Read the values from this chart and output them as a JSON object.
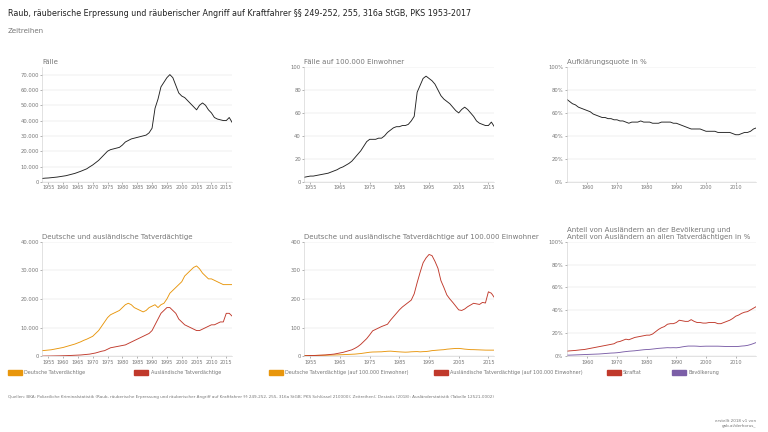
{
  "title": "Raub, räuberische Erpressung und räuberischer Angriff auf Kraftfahrer §§ 249-252, 255, 316a StGB, PKS 1953-2017",
  "subtitle": "Zeitreihen",
  "bg_color": "#ffffff",
  "text_color": "#777777",
  "line_color_black": "#222222",
  "line_color_orange": "#e8960c",
  "line_color_red": "#c0392b",
  "line_color_pink": "#c0392b",
  "line_color_purple": "#7b5ea7",
  "source_text": "Quellen: BKA: Polizeiliche Kriminalstatistik (Raub, räuberische Erpressung und räuberischer Angriff auf Kraftfahrer §§ 249-252, 255, 316a StGB; PKS Schlüssel 210000); Zeitreihen); Destatis (2018): Ausländerstatistik (Tabelle 12521-0002)",
  "credit_text": "erstellt 2018 v1 von\ngab.ai/derhorus_",
  "years_full": [
    1953,
    1954,
    1955,
    1956,
    1957,
    1958,
    1959,
    1960,
    1961,
    1962,
    1963,
    1964,
    1965,
    1966,
    1967,
    1968,
    1969,
    1970,
    1971,
    1972,
    1973,
    1974,
    1975,
    1976,
    1977,
    1978,
    1979,
    1980,
    1981,
    1982,
    1983,
    1984,
    1985,
    1986,
    1987,
    1988,
    1989,
    1990,
    1991,
    1992,
    1993,
    1994,
    1995,
    1996,
    1997,
    1998,
    1999,
    2000,
    2001,
    2002,
    2003,
    2004,
    2005,
    2006,
    2007,
    2008,
    2009,
    2010,
    2011,
    2012,
    2013,
    2014,
    2015,
    2016,
    2017
  ],
  "cases_total": [
    2200,
    2400,
    2500,
    2700,
    2900,
    3100,
    3400,
    3700,
    4000,
    4500,
    5000,
    5500,
    6200,
    6900,
    7700,
    8500,
    9800,
    11000,
    12500,
    14000,
    16000,
    18000,
    20000,
    21000,
    21500,
    22000,
    22500,
    24000,
    26000,
    27000,
    28000,
    28500,
    29000,
    29500,
    30000,
    30500,
    32000,
    35000,
    48000,
    54000,
    62000,
    65000,
    68000,
    70000,
    68000,
    63000,
    58000,
    56000,
    55000,
    53000,
    51000,
    49000,
    47000,
    50000,
    51500,
    50000,
    47000,
    45000,
    42000,
    41000,
    40500,
    40000,
    40000,
    42000,
    38700
  ],
  "cases_per100k": [
    4,
    4.5,
    5,
    5,
    5.5,
    6,
    6.5,
    7,
    7.5,
    8.5,
    9.5,
    10.5,
    12,
    13,
    14.5,
    16,
    18,
    21,
    24,
    27,
    31,
    35,
    37,
    37,
    37,
    38,
    38,
    40,
    43,
    45,
    47,
    48,
    48,
    49,
    49,
    50,
    53,
    57,
    78,
    84,
    90,
    92,
    90,
    88,
    85,
    80,
    75,
    72,
    70,
    68,
    65,
    62,
    60,
    63,
    65,
    63,
    60,
    57,
    53,
    51,
    50,
    49,
    49,
    52,
    48
  ],
  "clearance_years": [
    1953,
    1954,
    1955,
    1956,
    1957,
    1958,
    1959,
    1960,
    1961,
    1962,
    1963,
    1964,
    1965,
    1966,
    1967,
    1968,
    1969,
    1970,
    1971,
    1972,
    1973,
    1974,
    1975,
    1976,
    1977,
    1978,
    1979,
    1980,
    1981,
    1982,
    1983,
    1984,
    1985,
    1986,
    1987,
    1988,
    1989,
    1990,
    1991,
    1992,
    1993,
    1994,
    1995,
    1996,
    1997,
    1998,
    1999,
    2000,
    2001,
    2002,
    2003,
    2004,
    2005,
    2006,
    2007,
    2008,
    2009,
    2010,
    2011,
    2012,
    2013,
    2014,
    2015,
    2016,
    2017
  ],
  "clearance_values": [
    72,
    70,
    68,
    67,
    65,
    64,
    63,
    62,
    61,
    59,
    58,
    57,
    56,
    56,
    55,
    55,
    54,
    54,
    53,
    53,
    52,
    51,
    52,
    52,
    52,
    53,
    52,
    52,
    52,
    51,
    51,
    51,
    52,
    52,
    52,
    52,
    51,
    51,
    50,
    49,
    48,
    47,
    46,
    46,
    46,
    46,
    45,
    44,
    44,
    44,
    44,
    43,
    43,
    43,
    43,
    43,
    42,
    41,
    41,
    42,
    43,
    43,
    44,
    46,
    47
  ],
  "years_full2": [
    1953,
    1954,
    1955,
    1956,
    1957,
    1958,
    1959,
    1960,
    1961,
    1962,
    1963,
    1964,
    1965,
    1966,
    1967,
    1968,
    1969,
    1970,
    1971,
    1972,
    1973,
    1974,
    1975,
    1976,
    1977,
    1978,
    1979,
    1980,
    1981,
    1982,
    1983,
    1984,
    1985,
    1986,
    1987,
    1988,
    1989,
    1990,
    1991,
    1992,
    1993,
    1994,
    1995,
    1996,
    1997,
    1998,
    1999,
    2000,
    2001,
    2002,
    2003,
    2004,
    2005,
    2006,
    2007,
    2008,
    2009,
    2010,
    2011,
    2012,
    2013,
    2014,
    2015,
    2016,
    2017
  ],
  "german_suspects": [
    2000,
    2100,
    2200,
    2300,
    2500,
    2700,
    2900,
    3100,
    3400,
    3700,
    4000,
    4300,
    4700,
    5100,
    5600,
    6000,
    6500,
    7000,
    8000,
    9000,
    10500,
    12000,
    13500,
    14500,
    15000,
    15500,
    16000,
    17000,
    18000,
    18500,
    18000,
    17000,
    16500,
    16000,
    15500,
    16000,
    17000,
    17500,
    18000,
    17000,
    18000,
    18500,
    20000,
    22000,
    23000,
    24000,
    25000,
    26000,
    28000,
    29000,
    30000,
    31000,
    31500,
    30500,
    29000,
    28000,
    27000,
    27000,
    26500,
    26000,
    25500,
    25000,
    25000,
    25000,
    25000
  ],
  "foreign_suspects": [
    100,
    120,
    130,
    140,
    160,
    180,
    200,
    230,
    260,
    300,
    350,
    400,
    450,
    500,
    600,
    700,
    800,
    1000,
    1200,
    1500,
    1800,
    2000,
    2500,
    3000,
    3200,
    3400,
    3600,
    3800,
    4000,
    4500,
    5000,
    5500,
    6000,
    6500,
    7000,
    7500,
    8000,
    9000,
    11000,
    13000,
    15000,
    16000,
    17000,
    17000,
    16000,
    15000,
    13000,
    12000,
    11000,
    10500,
    10000,
    9500,
    9000,
    9000,
    9500,
    10000,
    10500,
    11000,
    11000,
    11500,
    12000,
    12000,
    15000,
    15000,
    14000
  ],
  "german_per100k": [
    3.0,
    3.1,
    3.2,
    3.3,
    3.5,
    3.7,
    3.9,
    4.1,
    4.4,
    4.7,
    5.0,
    5.3,
    5.7,
    6.1,
    6.6,
    7.0,
    7.5,
    8.0,
    9.0,
    10.0,
    11.5,
    13.0,
    14.5,
    15.3,
    15.5,
    15.8,
    16.0,
    17.0,
    17.9,
    18.3,
    17.5,
    16.5,
    15.8,
    15.2,
    14.7,
    15.1,
    16.0,
    16.5,
    16.8,
    15.8,
    16.6,
    17.0,
    18.3,
    20.1,
    21.0,
    21.9,
    22.7,
    23.4,
    25.1,
    26.0,
    26.9,
    27.7,
    27.8,
    26.8,
    25.4,
    24.5,
    23.6,
    23.5,
    23.1,
    22.7,
    22.3,
    21.9,
    21.8,
    21.8,
    21.8
  ],
  "foreign_per100k": [
    2,
    2.5,
    3,
    3,
    3.5,
    4,
    4.5,
    5,
    6,
    7,
    8,
    10,
    12,
    14,
    17,
    20,
    23,
    28,
    34,
    42,
    52,
    62,
    75,
    89,
    94,
    99,
    104,
    108,
    112,
    126,
    138,
    150,
    162,
    172,
    180,
    188,
    196,
    218,
    257,
    293,
    326,
    343,
    355,
    351,
    331,
    307,
    264,
    240,
    214,
    200,
    188,
    175,
    162,
    160,
    165,
    173,
    179,
    185,
    183,
    181,
    188,
    186,
    225,
    220,
    205
  ],
  "share_years": [
    1953,
    1954,
    1955,
    1956,
    1957,
    1958,
    1959,
    1960,
    1961,
    1962,
    1963,
    1964,
    1965,
    1966,
    1967,
    1968,
    1969,
    1970,
    1971,
    1972,
    1973,
    1974,
    1975,
    1976,
    1977,
    1978,
    1979,
    1980,
    1981,
    1982,
    1983,
    1984,
    1985,
    1986,
    1987,
    1988,
    1989,
    1990,
    1991,
    1992,
    1993,
    1994,
    1995,
    1996,
    1997,
    1998,
    1999,
    2000,
    2001,
    2002,
    2003,
    2004,
    2005,
    2006,
    2007,
    2008,
    2009,
    2010,
    2011,
    2012,
    2013,
    2014,
    2015,
    2016,
    2017
  ],
  "straftat_share": [
    4.5,
    4.8,
    5.0,
    5.2,
    5.5,
    5.8,
    6.0,
    6.5,
    7.0,
    7.5,
    8.0,
    8.5,
    9.0,
    9.5,
    10.0,
    10.5,
    11.0,
    12.5,
    13.0,
    14.0,
    15.0,
    14.5,
    15.5,
    16.5,
    17.0,
    17.5,
    18.0,
    18.5,
    18.5,
    19.5,
    21.5,
    23.5,
    25.0,
    26.0,
    28.0,
    28.5,
    28.5,
    29.5,
    31.5,
    31.0,
    30.5,
    30.5,
    32.0,
    30.5,
    29.5,
    29.5,
    29.0,
    29.0,
    29.5,
    29.5,
    29.5,
    28.5,
    28.5,
    29.5,
    30.5,
    31.5,
    33.0,
    35.0,
    36.0,
    37.5,
    38.5,
    39.0,
    40.5,
    42.0,
    43.5
  ],
  "bevoelkerung_share": [
    1.1,
    1.1,
    1.2,
    1.3,
    1.4,
    1.5,
    1.6,
    1.7,
    1.8,
    1.9,
    2.0,
    2.1,
    2.3,
    2.5,
    2.7,
    2.9,
    3.0,
    3.2,
    3.5,
    3.9,
    4.2,
    4.5,
    4.7,
    4.9,
    5.2,
    5.5,
    5.8,
    6.0,
    6.1,
    6.4,
    6.7,
    7.0,
    7.2,
    7.4,
    7.6,
    7.5,
    7.6,
    7.5,
    7.8,
    8.3,
    8.7,
    9.0,
    9.0,
    9.0,
    8.9,
    8.7,
    8.8,
    8.9,
    8.9,
    8.9,
    8.9,
    8.9,
    8.8,
    8.7,
    8.6,
    8.6,
    8.6,
    8.6,
    8.7,
    9.0,
    9.2,
    9.6,
    10.3,
    11.2,
    12.2
  ],
  "subplot_titles": [
    "Fälle",
    "Fälle auf 100.000 Einwohner",
    "Aufklärungsquote in %",
    "Deutsche und ausländische Tatverdächtige",
    "Deutsche und ausländische Tatverdächtige auf 100.000 Einwohner",
    "Anteil von Ausländern an der Bevölkerung und\nAnteil von Ausländern an allen Tatverdächtigen in %"
  ],
  "legend_labels": [
    "Deutsche Tatverdächtige",
    "Ausländische Tatverdächtige",
    "Deutsche Tatverdächtige (auf 100.000 Einwohner)",
    "Ausländische Tatverdächtige (auf 100.000 Einwohner)",
    "Straftat",
    "Bevölkerung"
  ]
}
